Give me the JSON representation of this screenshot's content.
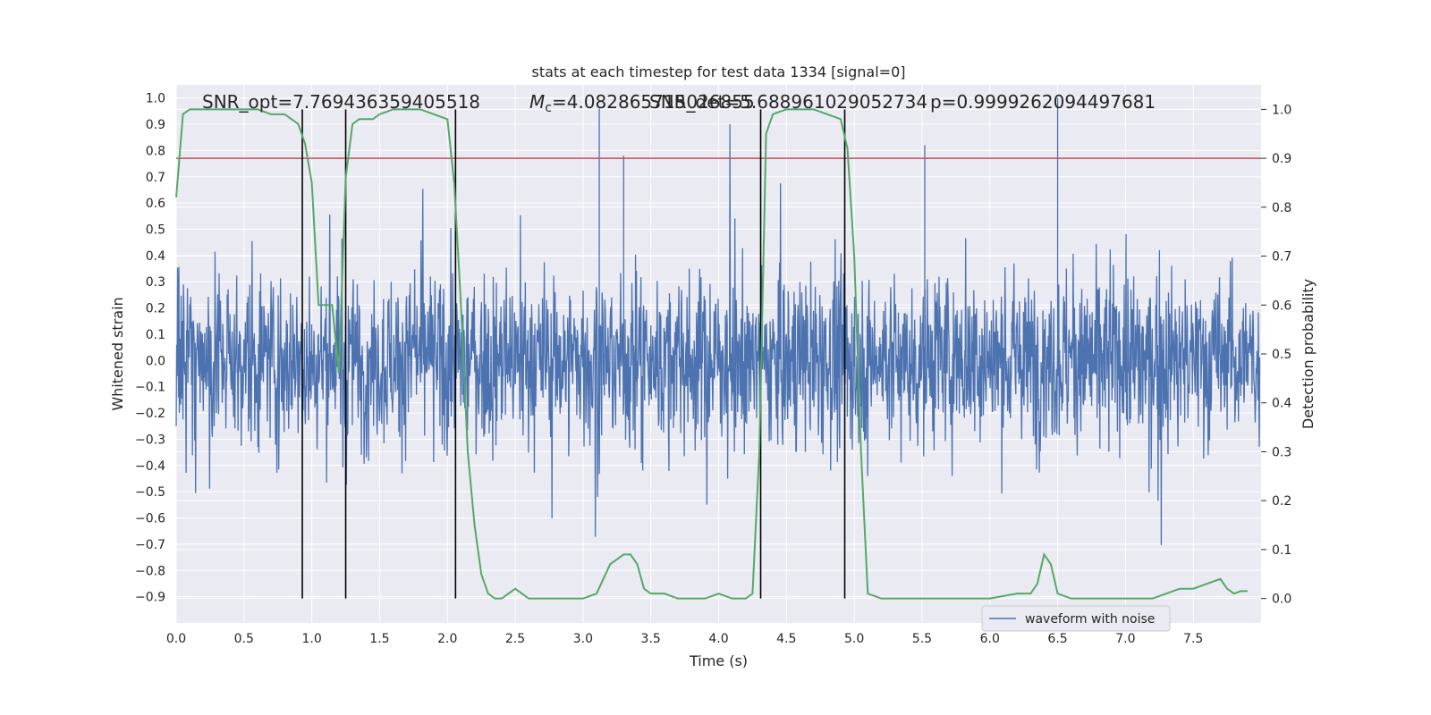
{
  "chart_data": {
    "type": "line",
    "title": "stats at each timestep for test data 1334 [signal=0]",
    "xlabel": "Time (s)",
    "ylabel": "Whitened strain",
    "ylabel_right": "Detection probability",
    "xlim": [
      0.0,
      8.0
    ],
    "ylim": [
      -1.0,
      1.05
    ],
    "ylim_right": [
      -0.05,
      1.05
    ],
    "x_ticks": [
      "0.0",
      "0.5",
      "1.0",
      "1.5",
      "2.0",
      "2.5",
      "3.0",
      "3.5",
      "4.0",
      "4.5",
      "5.0",
      "5.5",
      "6.0",
      "6.5",
      "7.0",
      "7.5"
    ],
    "y_ticks": [
      "1.0",
      "0.9",
      "0.8",
      "0.7",
      "0.6",
      "0.5",
      "0.4",
      "0.3",
      "0.2",
      "0.1",
      "0.0",
      "−0.1",
      "−0.2",
      "−0.3",
      "−0.4",
      "−0.5",
      "−0.6",
      "−0.7",
      "−0.8",
      "−0.9"
    ],
    "y_ticks_right": [
      "1.0",
      "0.9",
      "0.8",
      "0.7",
      "0.6",
      "0.5",
      "0.4",
      "0.3",
      "0.2",
      "0.1",
      "0.0"
    ],
    "grid": true,
    "legend_position": "lower-right",
    "annotations": {
      "snr_opt": "SNR_opt=7.769436359405518",
      "mc": "=4.082865715026855",
      "mc_symbol": "M",
      "mc_sub": "c",
      "snr_det": "SNR_det=5.688961029052734",
      "p": "p=0.9999262094497681"
    },
    "colors": {
      "waveform": "#4c72b0",
      "probability": "#55a868",
      "threshold": "#c44e52",
      "vlines": "#000000",
      "background": "#eaeaf2",
      "grid": "#ffffff"
    },
    "series": [
      {
        "name": "waveform with noise",
        "axis": "left",
        "envelope": "dense whitened strain noise, roughly between -0.9 and 1.0",
        "peaks": [
          {
            "x": 3.12,
            "y": 0.96
          },
          {
            "x": 6.5,
            "y": 1.0
          },
          {
            "x": 5.52,
            "y": 0.82
          },
          {
            "x": 3.3,
            "y": 0.78
          }
        ]
      },
      {
        "axis": "right",
        "x": [
          0.0,
          0.05,
          0.1,
          0.2,
          0.3,
          0.4,
          0.5,
          0.6,
          0.7,
          0.8,
          0.85,
          0.9,
          0.95,
          1.0,
          1.05,
          1.1,
          1.15,
          1.2,
          1.25,
          1.3,
          1.35,
          1.4,
          1.45,
          1.5,
          1.6,
          1.7,
          1.8,
          1.9,
          2.0,
          2.05,
          2.1,
          2.15,
          2.2,
          2.25,
          2.3,
          2.35,
          2.4,
          2.45,
          2.5,
          2.55,
          2.6,
          2.7,
          2.8,
          2.9,
          3.0,
          3.1,
          3.2,
          3.3,
          3.35,
          3.4,
          3.45,
          3.5,
          3.6,
          3.7,
          3.8,
          3.9,
          4.0,
          4.1,
          4.2,
          4.25,
          4.3,
          4.35,
          4.4,
          4.5,
          4.6,
          4.7,
          4.8,
          4.9,
          4.95,
          5.0,
          5.05,
          5.1,
          5.2,
          5.4,
          5.6,
          5.8,
          6.0,
          6.2,
          6.3,
          6.35,
          6.4,
          6.45,
          6.5,
          6.6,
          6.7,
          6.8,
          7.0,
          7.2,
          7.3,
          7.4,
          7.5,
          7.6,
          7.7,
          7.75,
          7.8,
          7.85,
          7.9
        ],
        "y": [
          0.82,
          0.99,
          1.0,
          1.0,
          1.0,
          1.0,
          1.0,
          1.0,
          0.99,
          0.99,
          0.98,
          0.97,
          0.93,
          0.85,
          0.6,
          0.6,
          0.6,
          0.46,
          0.86,
          0.97,
          0.98,
          0.98,
          0.98,
          0.99,
          1.0,
          1.0,
          1.0,
          0.99,
          0.98,
          0.85,
          0.6,
          0.3,
          0.15,
          0.05,
          0.01,
          0.0,
          0.0,
          0.01,
          0.02,
          0.01,
          0.0,
          0.0,
          0.0,
          0.0,
          0.0,
          0.01,
          0.07,
          0.09,
          0.09,
          0.07,
          0.02,
          0.01,
          0.01,
          0.0,
          0.0,
          0.0,
          0.01,
          0.0,
          0.0,
          0.01,
          0.3,
          0.95,
          0.99,
          1.0,
          1.0,
          1.0,
          0.99,
          0.98,
          0.92,
          0.7,
          0.3,
          0.01,
          0.0,
          0.0,
          0.0,
          0.0,
          0.0,
          0.01,
          0.01,
          0.03,
          0.09,
          0.07,
          0.01,
          0.0,
          0.0,
          0.0,
          0.0,
          0.0,
          0.01,
          0.02,
          0.02,
          0.03,
          0.04,
          0.02,
          0.01,
          0.015,
          0.015
        ]
      }
    ],
    "threshold_right": 0.9,
    "vertical_lines_x": [
      0.93,
      1.25,
      2.06,
      4.31,
      4.93
    ]
  }
}
